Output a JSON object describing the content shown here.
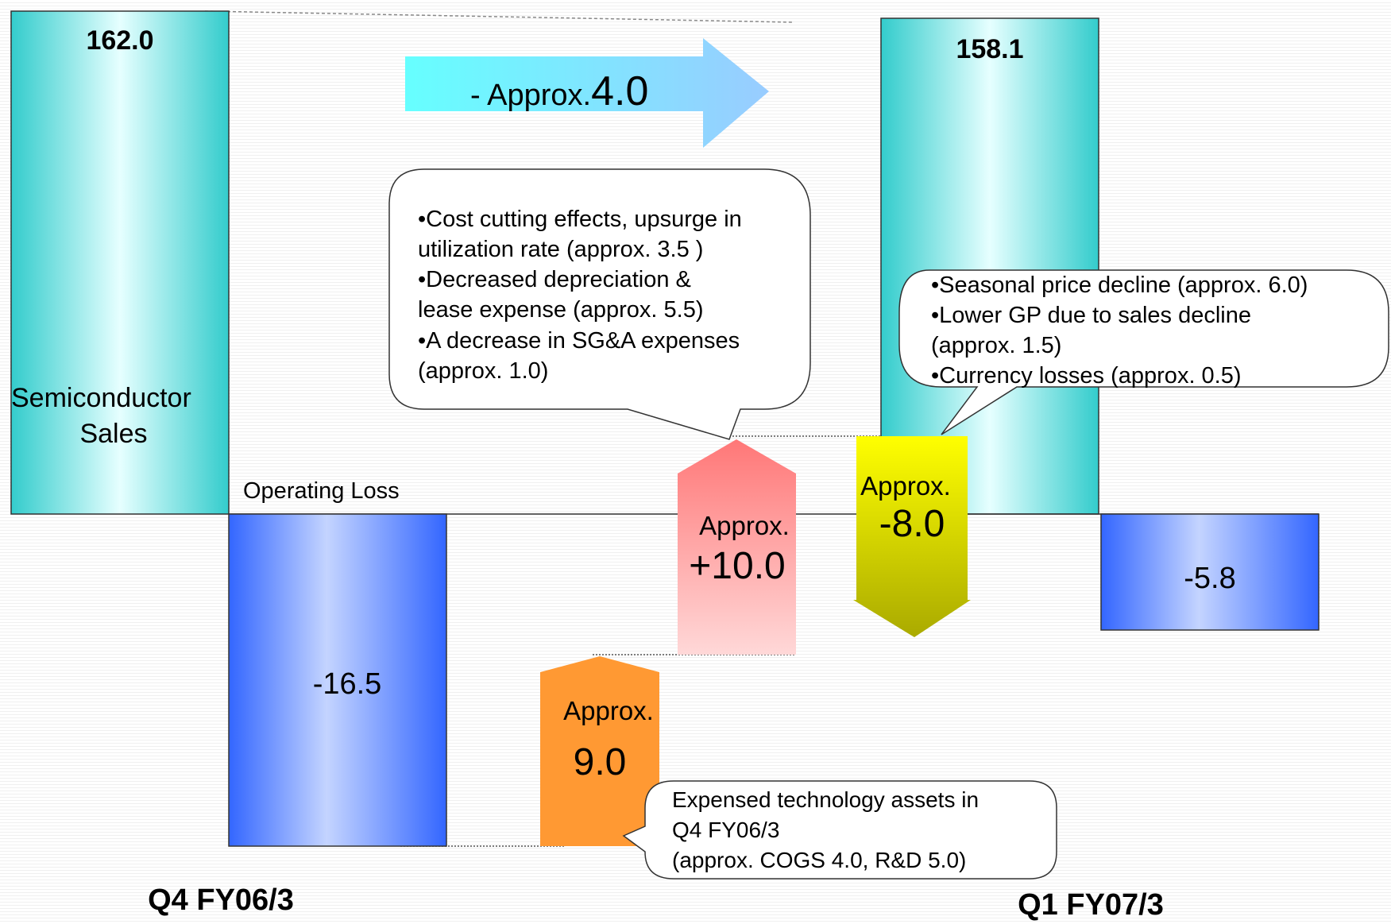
{
  "chart_data": {
    "type": "bar",
    "title": "",
    "categories": [
      "Q4 FY06/3",
      "Q1 FY07/3"
    ],
    "series": [
      {
        "name": "Semiconductor Sales",
        "values": [
          162.0,
          158.1
        ]
      },
      {
        "name": "Operating Loss",
        "values": [
          -16.5,
          -5.8
        ]
      }
    ],
    "steps": [
      {
        "label_top": "Approx.",
        "label_value": "9.0",
        "value": 9.0,
        "color": "#ff9933"
      },
      {
        "label_top": "Approx.",
        "label_value": "+10.0",
        "value": 10.0,
        "color": "#ff8080"
      },
      {
        "label_top": "Approx.",
        "label_value": "-8.0",
        "value": -8.0,
        "color": "#cccc00"
      }
    ],
    "labels": {
      "sales_q4": "162.0",
      "sales_q1": "158.1",
      "sales_name_1": "Semiconductor",
      "sales_name_2": "Sales",
      "loss_name": "Operating Loss",
      "loss_q4": "-16.5",
      "loss_q1": "-5.8",
      "x_q4": "Q4 FY06/3",
      "x_q1": "Q1 FY07/3"
    },
    "change_arrow": {
      "prefix": "- Approx.",
      "value": "4.0"
    },
    "callouts": {
      "cost": [
        "•Cost cutting effects, upsurge in",
        "utilization rate (approx. 3.5 )",
        "•Decreased depreciation  &",
        "lease expense (approx. 5.5)",
        "•A decrease in SG&A expenses",
        "(approx. 1.0)"
      ],
      "price": [
        "•Seasonal price decline (approx. 6.0)",
        "•Lower GP due to sales decline",
        "(approx. 1.5)",
        "•Currency losses  (approx. 0.5)"
      ],
      "tech": [
        "Expensed technology assets in",
        "Q4 FY06/3",
        "(approx. COGS 4.0, R&D 5.0)"
      ]
    },
    "colors": {
      "sales": "#33cccc",
      "loss": "#3366ff",
      "arrow": "#66ffff",
      "step1": "#ff9933",
      "step2": "#ff8080",
      "step3": "#cccc00"
    }
  }
}
